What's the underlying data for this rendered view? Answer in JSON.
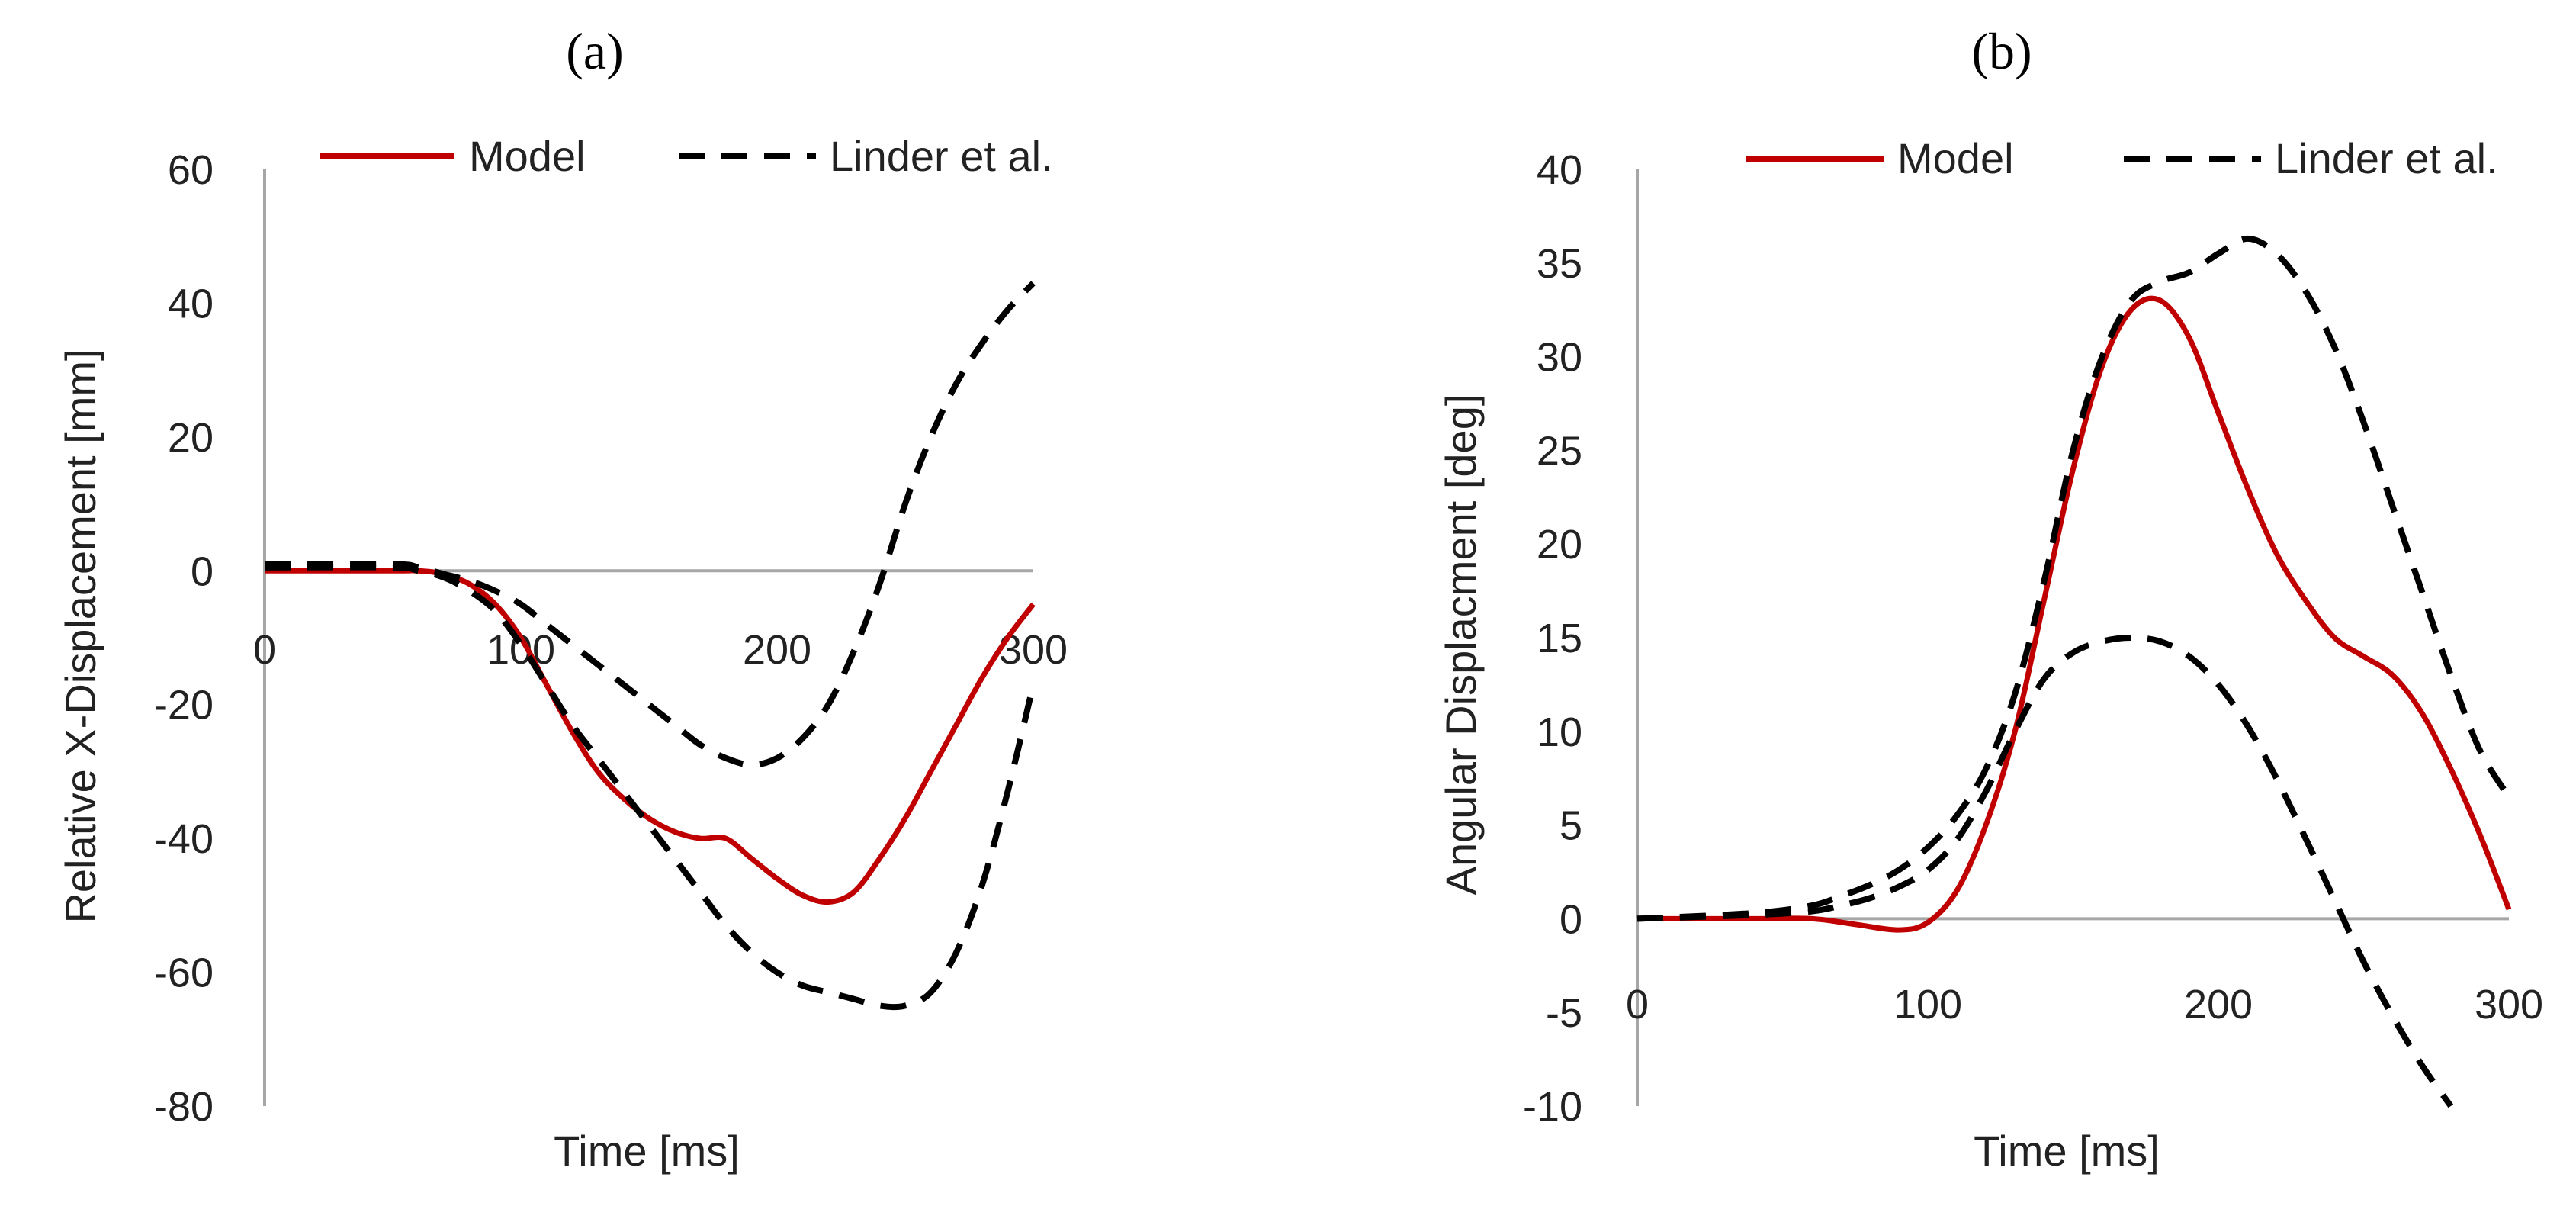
{
  "chart_data": [
    {
      "type": "line",
      "panel_label": "(a)",
      "xlabel": "Time [ms]",
      "ylabel": "Relative X-Displacement [mm]",
      "xlim": [
        0,
        300
      ],
      "ylim": [
        -80,
        60
      ],
      "xticks": [
        "0",
        "100",
        "200",
        "300"
      ],
      "yticks": [
        "60",
        "40",
        "20",
        "0",
        "-20",
        "-40",
        "-60",
        "-80"
      ],
      "grid": false,
      "legend": {
        "placement": "top",
        "entries": [
          "Model",
          "Linder et al."
        ]
      },
      "series": [
        {
          "name": "Model",
          "style": "solid",
          "color": "#c00000",
          "x": [
            0,
            50,
            60,
            70,
            80,
            90,
            100,
            110,
            120,
            130,
            140,
            150,
            160,
            170,
            180,
            190,
            200,
            210,
            220,
            230,
            240,
            250,
            260,
            270,
            280,
            290,
            300
          ],
          "y": [
            0,
            0,
            0,
            -0.5,
            -2,
            -5,
            -10,
            -17,
            -24,
            -30,
            -34,
            -37,
            -39,
            -40,
            -40,
            -43,
            -46,
            -48.5,
            -49.5,
            -48,
            -43,
            -37,
            -30,
            -23,
            -16,
            -10,
            -5
          ]
        },
        {
          "name": "Linder et al.",
          "style": "dashed",
          "color": "#000000",
          "x": [
            0,
            50,
            60,
            70,
            80,
            90,
            100,
            110,
            120,
            130,
            140,
            150,
            160,
            170,
            180,
            190,
            200,
            210,
            220,
            230,
            240,
            250,
            260,
            270,
            280,
            290,
            300
          ],
          "y": [
            0.5,
            0.5,
            0,
            -1,
            -3,
            -6,
            -11,
            -17,
            -23,
            -28,
            -33,
            -38,
            -43,
            -48,
            -53,
            -57,
            -60,
            -62,
            -63,
            -64,
            -65,
            -65,
            -63,
            -57,
            -47,
            -33,
            -17
          ]
        },
        {
          "name": "Linder et al.",
          "style": "dashed",
          "color": "#000000",
          "x": [
            0,
            50,
            60,
            70,
            80,
            90,
            100,
            110,
            120,
            130,
            140,
            150,
            160,
            170,
            180,
            190,
            200,
            210,
            220,
            230,
            240,
            250,
            260,
            270,
            280,
            290,
            300
          ],
          "y": [
            1,
            1,
            0.5,
            -0.5,
            -1.5,
            -3,
            -5,
            -8,
            -11,
            -14,
            -17,
            -20,
            -23,
            -26,
            -28,
            -29,
            -28,
            -25,
            -20,
            -12,
            -2,
            10,
            20,
            28,
            34,
            39,
            43
          ]
        }
      ]
    },
    {
      "type": "line",
      "panel_label": "(b)",
      "xlabel": "Time [ms]",
      "ylabel": "Angular Displacment [deg]",
      "xlim": [
        0,
        300
      ],
      "ylim": [
        -10,
        40
      ],
      "xticks": [
        "0",
        "100",
        "200",
        "300"
      ],
      "yticks": [
        "40",
        "35",
        "30",
        "25",
        "20",
        "15",
        "10",
        "5",
        "0",
        "-5",
        "-10"
      ],
      "grid": false,
      "legend": {
        "placement": "top",
        "entries": [
          "Model",
          "Linder et al."
        ]
      },
      "series": [
        {
          "name": "Model",
          "style": "solid",
          "color": "#c00000",
          "x": [
            0,
            40,
            60,
            75,
            90,
            100,
            110,
            120,
            130,
            140,
            150,
            160,
            170,
            180,
            190,
            200,
            210,
            220,
            230,
            240,
            250,
            260,
            270,
            280,
            290,
            300
          ],
          "y": [
            0,
            0,
            0,
            -0.3,
            -0.6,
            -0.2,
            1.5,
            5,
            10,
            17,
            24,
            29.5,
            32.5,
            33,
            31,
            27,
            23,
            19.5,
            17,
            15,
            14,
            13,
            11,
            8,
            4.5,
            0.5
          ]
        },
        {
          "name": "Linder et al.",
          "style": "dashed",
          "color": "#000000",
          "x": [
            0,
            40,
            60,
            70,
            80,
            90,
            100,
            110,
            120,
            130,
            140,
            150,
            160,
            170,
            180,
            190,
            200,
            210,
            220,
            230,
            240,
            250,
            260,
            270,
            280,
            290,
            300
          ],
          "y": [
            0,
            0.3,
            0.7,
            1.2,
            1.8,
            2.6,
            3.8,
            5.5,
            8,
            12,
            18,
            25,
            30,
            33,
            34,
            34.5,
            35.5,
            36.3,
            35.5,
            33.5,
            30.5,
            26.5,
            22,
            17.5,
            13,
            9,
            6.5
          ]
        },
        {
          "name": "Linder et al.",
          "style": "dashed",
          "color": "#000000",
          "x": [
            0,
            40,
            60,
            70,
            80,
            90,
            100,
            110,
            120,
            130,
            140,
            150,
            160,
            170,
            180,
            190,
            200,
            210,
            220,
            230,
            240,
            250,
            260,
            270,
            280
          ],
          "y": [
            0,
            0.2,
            0.4,
            0.7,
            1.1,
            1.7,
            2.6,
            4.2,
            6.8,
            10,
            12.8,
            14.2,
            14.8,
            15,
            14.8,
            14,
            12.5,
            10.3,
            7.5,
            4.3,
            1,
            -2.3,
            -5.2,
            -7.8,
            -10
          ]
        }
      ]
    }
  ]
}
